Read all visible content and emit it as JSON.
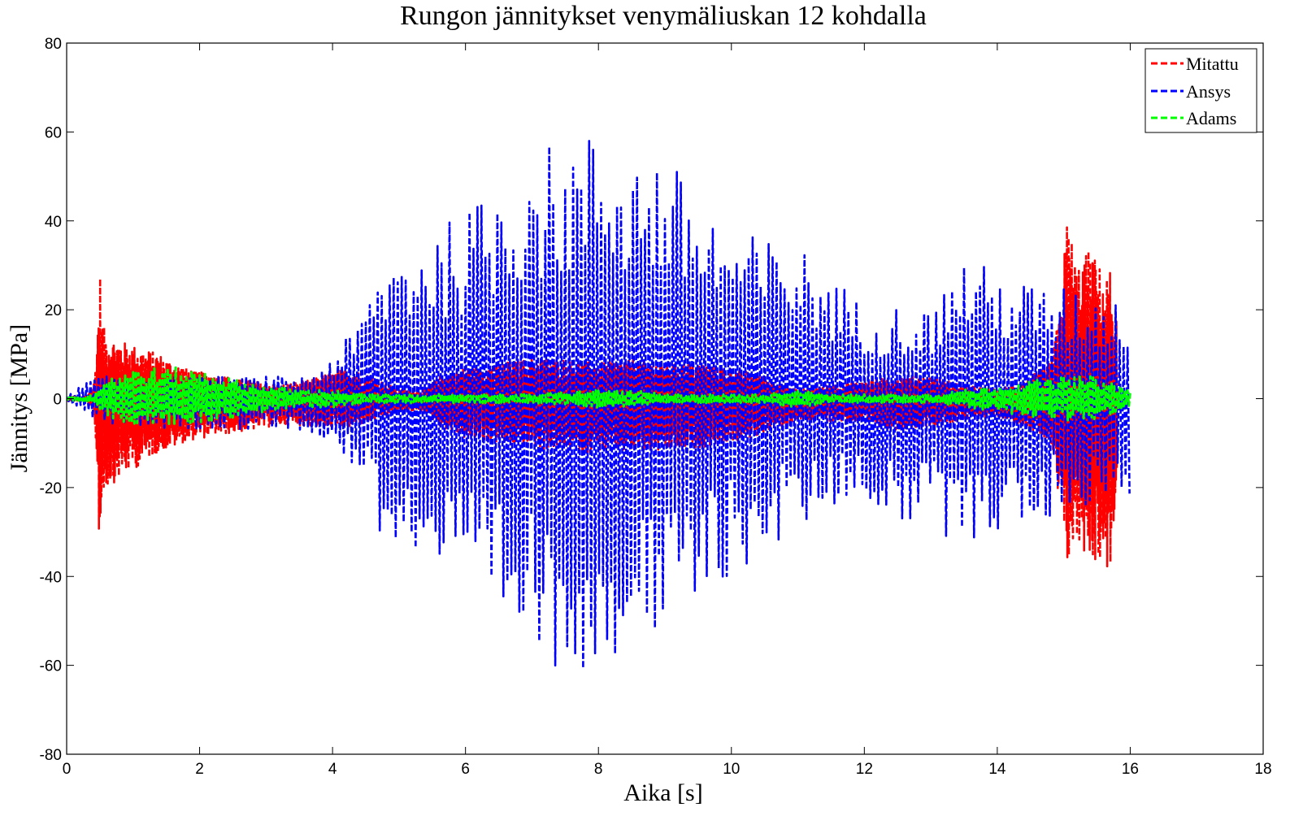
{
  "chart_data": {
    "type": "line",
    "title": "Rungon jännitykset venymäliuskan 12 kohdalla",
    "xlabel": "Aika [s]",
    "ylabel": "Jännitys [MPa]",
    "xlim": [
      0,
      18
    ],
    "ylim": [
      -80,
      80
    ],
    "xticks": [
      0,
      2,
      4,
      6,
      8,
      10,
      12,
      14,
      16,
      18
    ],
    "yticks": [
      80,
      60,
      40,
      20,
      0,
      -20,
      -40,
      -60,
      -80
    ],
    "grid": false,
    "legend_position": "top-right",
    "series": [
      {
        "name": "Mitattu",
        "color": "#ff0000",
        "line_style": "dashed",
        "x": [
          0,
          0.3,
          0.42,
          0.47,
          0.5,
          0.53,
          0.6,
          0.8,
          1.0,
          1.2,
          1.4,
          1.6,
          1.8,
          2.0,
          2.4,
          2.8,
          3.2,
          3.6,
          4.0,
          4.2,
          4.6,
          5.0,
          5.4,
          5.6,
          6.0,
          6.5,
          7.0,
          7.5,
          8.0,
          8.5,
          9.0,
          9.5,
          10.0,
          10.5,
          11.0,
          11.5,
          12.0,
          12.5,
          13.0,
          13.5,
          14.0,
          14.4,
          14.8,
          14.95,
          15.05,
          15.2,
          15.4,
          15.6,
          15.7,
          15.8
        ],
        "upper": [
          0.5,
          0.5,
          4,
          18,
          30,
          18,
          14,
          13,
          12,
          11,
          10,
          8,
          7,
          6,
          5,
          4,
          3,
          4,
          6,
          7,
          5,
          2,
          2,
          5,
          7,
          8,
          9,
          9,
          8,
          9,
          8,
          8,
          7,
          5,
          2,
          3,
          4,
          5,
          5,
          3,
          2,
          4,
          8,
          20,
          42,
          30,
          34,
          28,
          29,
          18
        ],
        "lower": [
          -0.5,
          -0.5,
          -4,
          -22,
          -37,
          -24,
          -20,
          -18,
          -16,
          -14,
          -12,
          -11,
          -10,
          -9,
          -8,
          -7,
          -6,
          -6,
          -7,
          -7,
          -5,
          -3,
          -3,
          -6,
          -9,
          -10,
          -11,
          -12,
          -12,
          -12,
          -12,
          -11,
          -10,
          -8,
          -5,
          -5,
          -6,
          -7,
          -6,
          -5,
          -4,
          -6,
          -10,
          -28,
          -38,
          -33,
          -36,
          -38,
          -39,
          -20
        ]
      },
      {
        "name": "Ansys",
        "color": "#0000ff",
        "line_style": "dashed",
        "x": [
          0,
          0.4,
          0.8,
          1.2,
          1.6,
          2.0,
          2.4,
          2.8,
          3.2,
          3.6,
          4.0,
          4.4,
          4.7,
          5.0,
          5.5,
          6.0,
          6.5,
          7.0,
          7.5,
          8.0,
          8.5,
          9.0,
          9.5,
          10.0,
          10.5,
          11.0,
          11.5,
          12.0,
          12.5,
          13.0,
          13.5,
          14.0,
          14.5,
          15.0,
          15.5,
          16.0
        ],
        "upper": [
          0.5,
          5,
          5,
          5,
          5,
          5,
          5,
          5,
          5,
          5,
          10,
          17,
          30,
          34,
          38,
          42,
          49,
          58,
          57,
          61,
          57,
          55,
          46,
          38,
          36,
          35,
          28,
          21,
          21,
          20,
          33,
          28,
          26,
          25,
          24,
          22
        ],
        "lower": [
          -0.5,
          -5,
          -6,
          -7,
          -7,
          -7,
          -7,
          -7,
          -7,
          -7,
          -10,
          -18,
          -30,
          -33,
          -38,
          -45,
          -52,
          -58,
          -62,
          -60,
          -55,
          -55,
          -48,
          -40,
          -35,
          -30,
          -25,
          -22,
          -28,
          -30,
          -32,
          -30,
          -30,
          -25,
          -24,
          -22
        ]
      },
      {
        "name": "Adams",
        "color": "#00ff00",
        "line_style": "dashed",
        "x": [
          0,
          0.4,
          0.6,
          1.0,
          1.4,
          1.8,
          2.2,
          2.6,
          3.0,
          3.5,
          4.0,
          4.5,
          5.0,
          5.5,
          6.0,
          7.0,
          8.0,
          8.5,
          9.0,
          10.0,
          10.5,
          11.0,
          11.5,
          12.0,
          12.5,
          13.0,
          13.5,
          14.0,
          14.5,
          15.0,
          15.5,
          16.0
        ],
        "upper": [
          0.3,
          1,
          5,
          7,
          7,
          7,
          6,
          4,
          3,
          2,
          2,
          1,
          1,
          1,
          1,
          1,
          2,
          2,
          1,
          1,
          1,
          2,
          1,
          1,
          1,
          1,
          2,
          3,
          4,
          5,
          5,
          2
        ],
        "lower": [
          -0.3,
          -1,
          -4,
          -6,
          -6,
          -6,
          -5,
          -4,
          -3,
          -2,
          -2,
          -1,
          -1,
          -1,
          -1,
          -1,
          -2,
          -2,
          -1,
          -1,
          -1,
          -2,
          -1,
          -1,
          -1,
          -1,
          -2,
          -3,
          -4,
          -5,
          -5,
          -2
        ]
      }
    ]
  }
}
